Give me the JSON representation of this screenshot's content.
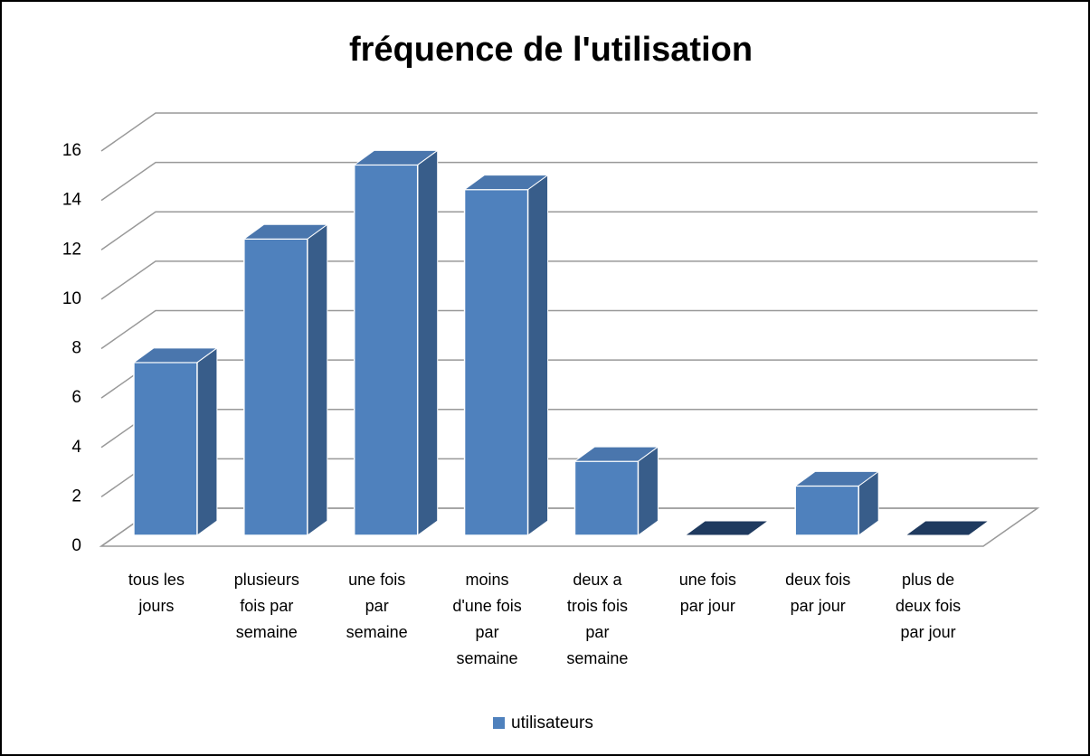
{
  "chart_data": {
    "type": "bar3d",
    "title": "fréquence de l'utilisation",
    "categories": [
      "tous les jours",
      "plusieurs fois par semaine",
      "une fois par semaine",
      "moins d'une fois par semaine",
      "deux a trois fois par semaine",
      "une fois par jour",
      "deux fois par jour",
      "plus de deux fois par jour"
    ],
    "series": [
      {
        "name": "utilisateurs",
        "color": "#4f81bd",
        "values": [
          7,
          12,
          15,
          14,
          3,
          0,
          2,
          0
        ]
      }
    ],
    "ylim": [
      0,
      16
    ],
    "yticks": [
      0,
      2,
      4,
      6,
      8,
      10,
      12,
      14,
      16
    ],
    "grid": true,
    "legend": "bottom"
  }
}
